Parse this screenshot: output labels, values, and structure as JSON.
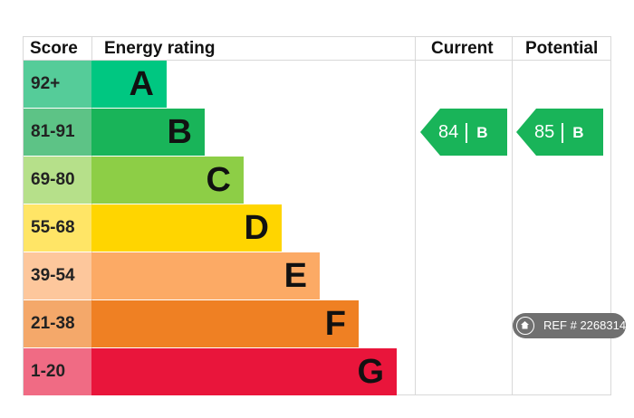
{
  "headers": {
    "score": "Score",
    "rating": "Energy rating",
    "current": "Current",
    "potential": "Potential"
  },
  "chart_data": {
    "type": "bar",
    "categories": [
      "A",
      "B",
      "C",
      "D",
      "E",
      "F",
      "G"
    ],
    "score_ranges": [
      "92+",
      "81-91",
      "69-80",
      "55-68",
      "39-54",
      "21-38",
      "1-20"
    ],
    "bands": [
      {
        "letter": "A",
        "range": "92+",
        "color": "#00c781",
        "score_color": "#55cc99"
      },
      {
        "letter": "B",
        "range": "81-91",
        "color": "#19b459",
        "score_color": "#5dc386"
      },
      {
        "letter": "C",
        "range": "69-80",
        "color": "#8dce46",
        "score_color": "#b6e08a"
      },
      {
        "letter": "D",
        "range": "55-68",
        "color": "#ffd500",
        "score_color": "#ffe566"
      },
      {
        "letter": "E",
        "range": "39-54",
        "color": "#fcaa65",
        "score_color": "#fdc79c"
      },
      {
        "letter": "F",
        "range": "21-38",
        "color": "#ef8023",
        "score_color": "#f4a86a"
      },
      {
        "letter": "G",
        "range": "1-20",
        "color": "#e9153b",
        "score_color": "#f06b84"
      }
    ],
    "current": {
      "value": "84",
      "band": "B",
      "color": "#19b459"
    },
    "potential": {
      "value": "85",
      "band": "B",
      "color": "#19b459"
    }
  },
  "watermark": {
    "text": "REF # 2268314",
    "icon": "home-icon"
  }
}
